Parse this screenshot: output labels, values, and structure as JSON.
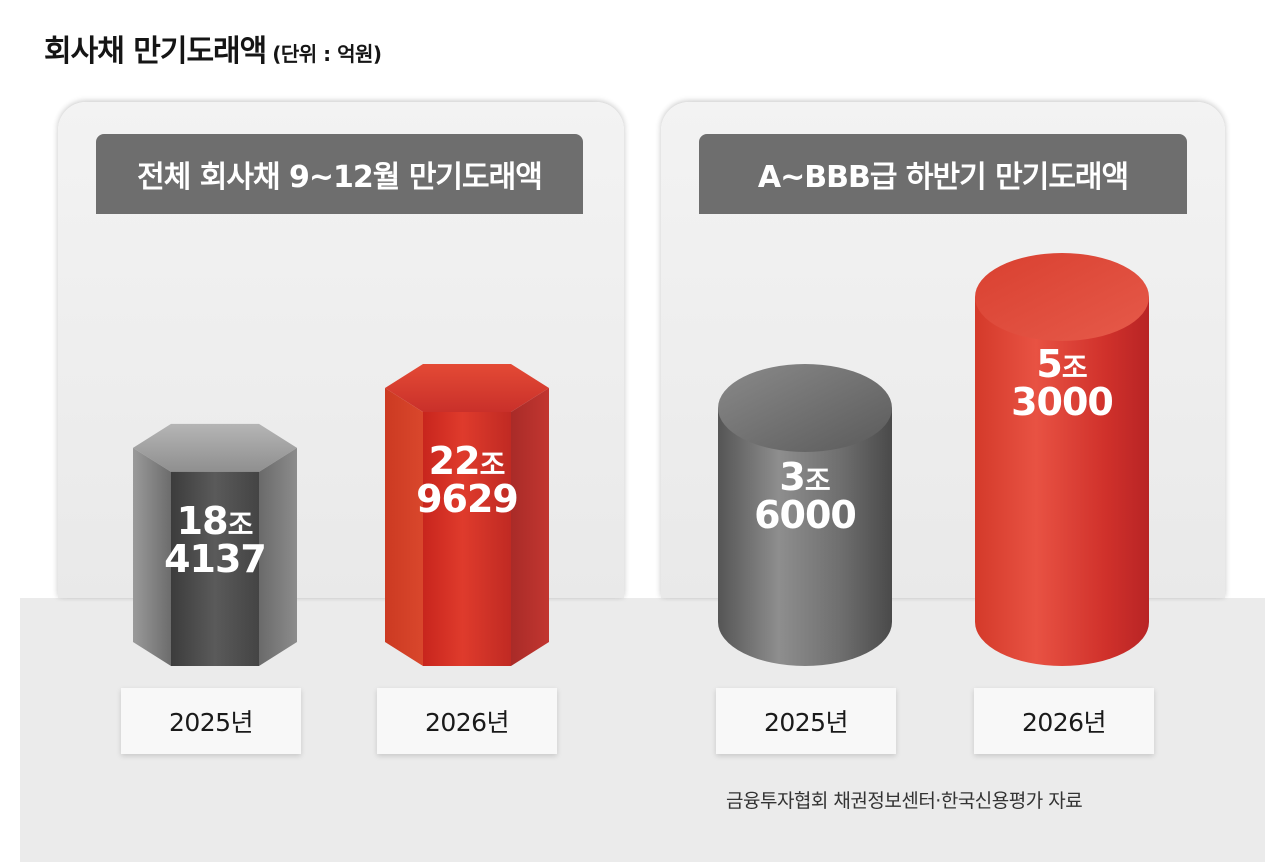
{
  "title": "회사채 만기도래액",
  "unit": "(단위 : 억원)",
  "source": "금융투자협회 채권정보센터·한국신용평가 자료",
  "colors": {
    "gray": "#6b6b6b",
    "red": "#d3362b",
    "header": "#6e6e6e",
    "floor": "#ebebeb"
  },
  "chart_data": [
    {
      "type": "bar",
      "shape": "hexagonal-prism",
      "title": "전체 회사채 9~12월 만기도래액",
      "categories": [
        "2025년",
        "2026년"
      ],
      "values": [
        184137,
        229629
      ],
      "labels": [
        {
          "line1": "18",
          "unit": "조",
          "line2": "4137"
        },
        {
          "line1": "22",
          "unit": "조",
          "line2": "9629"
        }
      ],
      "bar_colors": [
        "gray",
        "red"
      ]
    },
    {
      "type": "bar",
      "shape": "cylinder",
      "title": "A~BBB급 하반기 만기도래액",
      "categories": [
        "2025년",
        "2026년"
      ],
      "values": [
        36000,
        53000
      ],
      "labels": [
        {
          "line1": "3",
          "unit": "조",
          "line2": "6000"
        },
        {
          "line1": "5",
          "unit": "조",
          "line2": "3000"
        }
      ],
      "bar_colors": [
        "gray",
        "red"
      ]
    }
  ]
}
